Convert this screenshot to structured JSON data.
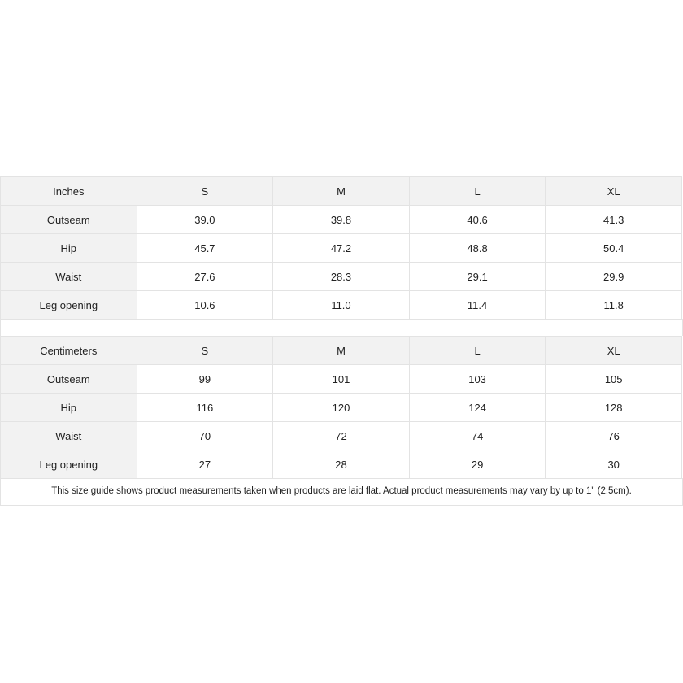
{
  "sizes": [
    "S",
    "M",
    "L",
    "XL"
  ],
  "tables": [
    {
      "unit": "Inches",
      "rows": [
        {
          "label": "Outseam",
          "values": [
            "39.0",
            "39.8",
            "40.6",
            "41.3"
          ]
        },
        {
          "label": "Hip",
          "values": [
            "45.7",
            "47.2",
            "48.8",
            "50.4"
          ]
        },
        {
          "label": "Waist",
          "values": [
            "27.6",
            "28.3",
            "29.1",
            "29.9"
          ]
        },
        {
          "label": "Leg opening",
          "values": [
            "10.6",
            "11.0",
            "11.4",
            "11.8"
          ]
        }
      ]
    },
    {
      "unit": "Centimeters",
      "rows": [
        {
          "label": "Outseam",
          "values": [
            "99",
            "101",
            "103",
            "105"
          ]
        },
        {
          "label": "Hip",
          "values": [
            "116",
            "120",
            "124",
            "128"
          ]
        },
        {
          "label": "Waist",
          "values": [
            "70",
            "72",
            "74",
            "76"
          ]
        },
        {
          "label": "Leg opening",
          "values": [
            "27",
            "28",
            "29",
            "30"
          ]
        }
      ]
    }
  ],
  "note": "This size guide shows product measurements taken when products are laid flat.  Actual product measurements may vary by up to 1\" (2.5cm)."
}
